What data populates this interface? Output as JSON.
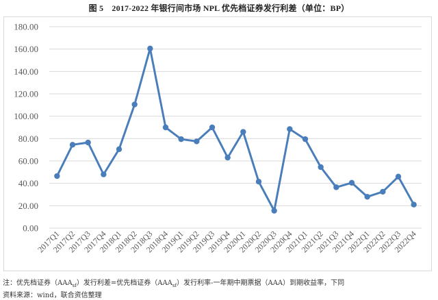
{
  "title": "图 5　2017-2022 年银行间市场 NPL 优先档证券发行利差（单位：BP）",
  "notes": {
    "note_prefix": "注：优先档证券（AAA",
    "note_sub": "sf",
    "note_mid": "）发行利差=优先档证券（AAA",
    "note_sub2": "sf",
    "note_suffix": "）发行利率-一年期中期票据（AAA）到期收益率，下同",
    "source": "资料来源：wind，联合资信整理"
  },
  "colors": {
    "line": "#4a7ebb",
    "grid": "#d9d9d9",
    "axis_text": "#595959"
  },
  "chart_data": {
    "type": "line",
    "title": "2017-2022 年银行间市场 NPL 优先档证券发行利差（单位：BP）",
    "xlabel": "",
    "ylabel": "",
    "ylim": [
      0,
      180
    ],
    "yticks": [
      "0.00",
      "20.00",
      "40.00",
      "60.00",
      "80.00",
      "100.00",
      "120.00",
      "140.00",
      "160.00",
      "180.00"
    ],
    "grid": true,
    "legend": "none",
    "categories": [
      "2017Q1",
      "2017Q2",
      "2017Q3",
      "2017Q4",
      "2018Q1",
      "2018Q2",
      "2018Q3",
      "2018Q4",
      "2019Q1",
      "2019Q2",
      "2019Q3",
      "2019Q4",
      "2020Q1",
      "2020Q2",
      "2020Q3",
      "2020Q4",
      "2021Q1",
      "2021Q2",
      "2021Q3",
      "2021Q4",
      "2022Q1",
      "2022Q2",
      "2022Q3",
      "2022Q4"
    ],
    "series": [
      {
        "name": "优先档证券发行利差",
        "values": [
          46.5,
          74.5,
          76.5,
          48,
          70.5,
          110.5,
          160.5,
          90,
          79.5,
          77.5,
          90,
          63,
          86,
          41.5,
          15.5,
          88.5,
          79.5,
          54.5,
          36.5,
          40.5,
          28,
          32.5,
          46,
          21
        ]
      }
    ]
  }
}
